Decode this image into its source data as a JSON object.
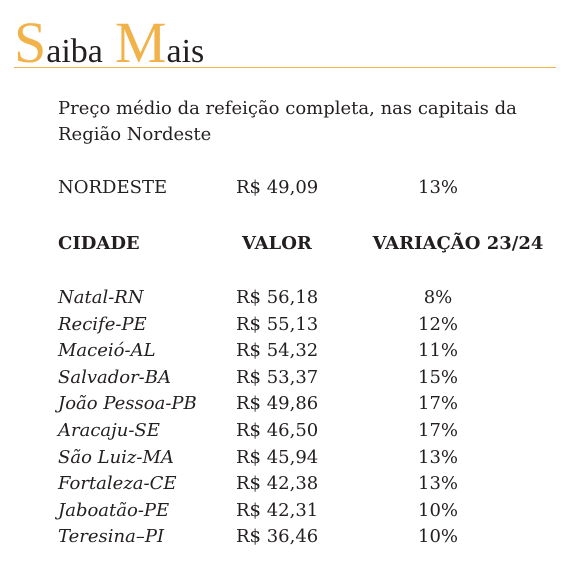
{
  "heading": {
    "initial1": "S",
    "rest1": "aiba",
    "initial2": "M",
    "rest2": "ais"
  },
  "intro": "Preço médio da refeição completa, nas capitais da Região Nordeste",
  "summary": {
    "region": "NORDESTE",
    "value": "R$ 49,09",
    "variation": "13%"
  },
  "columns": {
    "city": "CIDADE",
    "value": "VALOR",
    "variation": "VARIAÇÃO 23/24"
  },
  "rows": [
    {
      "city": "Natal-RN",
      "value": "R$ 56,18",
      "variation": "8%"
    },
    {
      "city": "Recife-PE",
      "value": "R$ 55,13",
      "variation": "12%"
    },
    {
      "city": "Maceió-AL",
      "value": "R$ 54,32",
      "variation": "11%"
    },
    {
      "city": "Salvador-BA",
      "value": "R$ 53,37",
      "variation": "15%"
    },
    {
      "city": "João Pessoa-PB",
      "value": "R$ 49,86",
      "variation": "17%"
    },
    {
      "city": "Aracaju-SE",
      "value": "R$ 46,50",
      "variation": "17%"
    },
    {
      "city": "São Luiz-MA",
      "value": "R$ 45,94",
      "variation": "13%"
    },
    {
      "city": "Fortaleza-CE",
      "value": "R$ 42,38",
      "variation": "13%"
    },
    {
      "city": "Jaboatão-PE",
      "value": "R$ 42,31",
      "variation": "10%"
    },
    {
      "city": "Teresina–PI",
      "value": "R$ 36,46",
      "variation": "10%"
    }
  ],
  "colors": {
    "accent": "#f2b24a",
    "text": "#231f20"
  }
}
